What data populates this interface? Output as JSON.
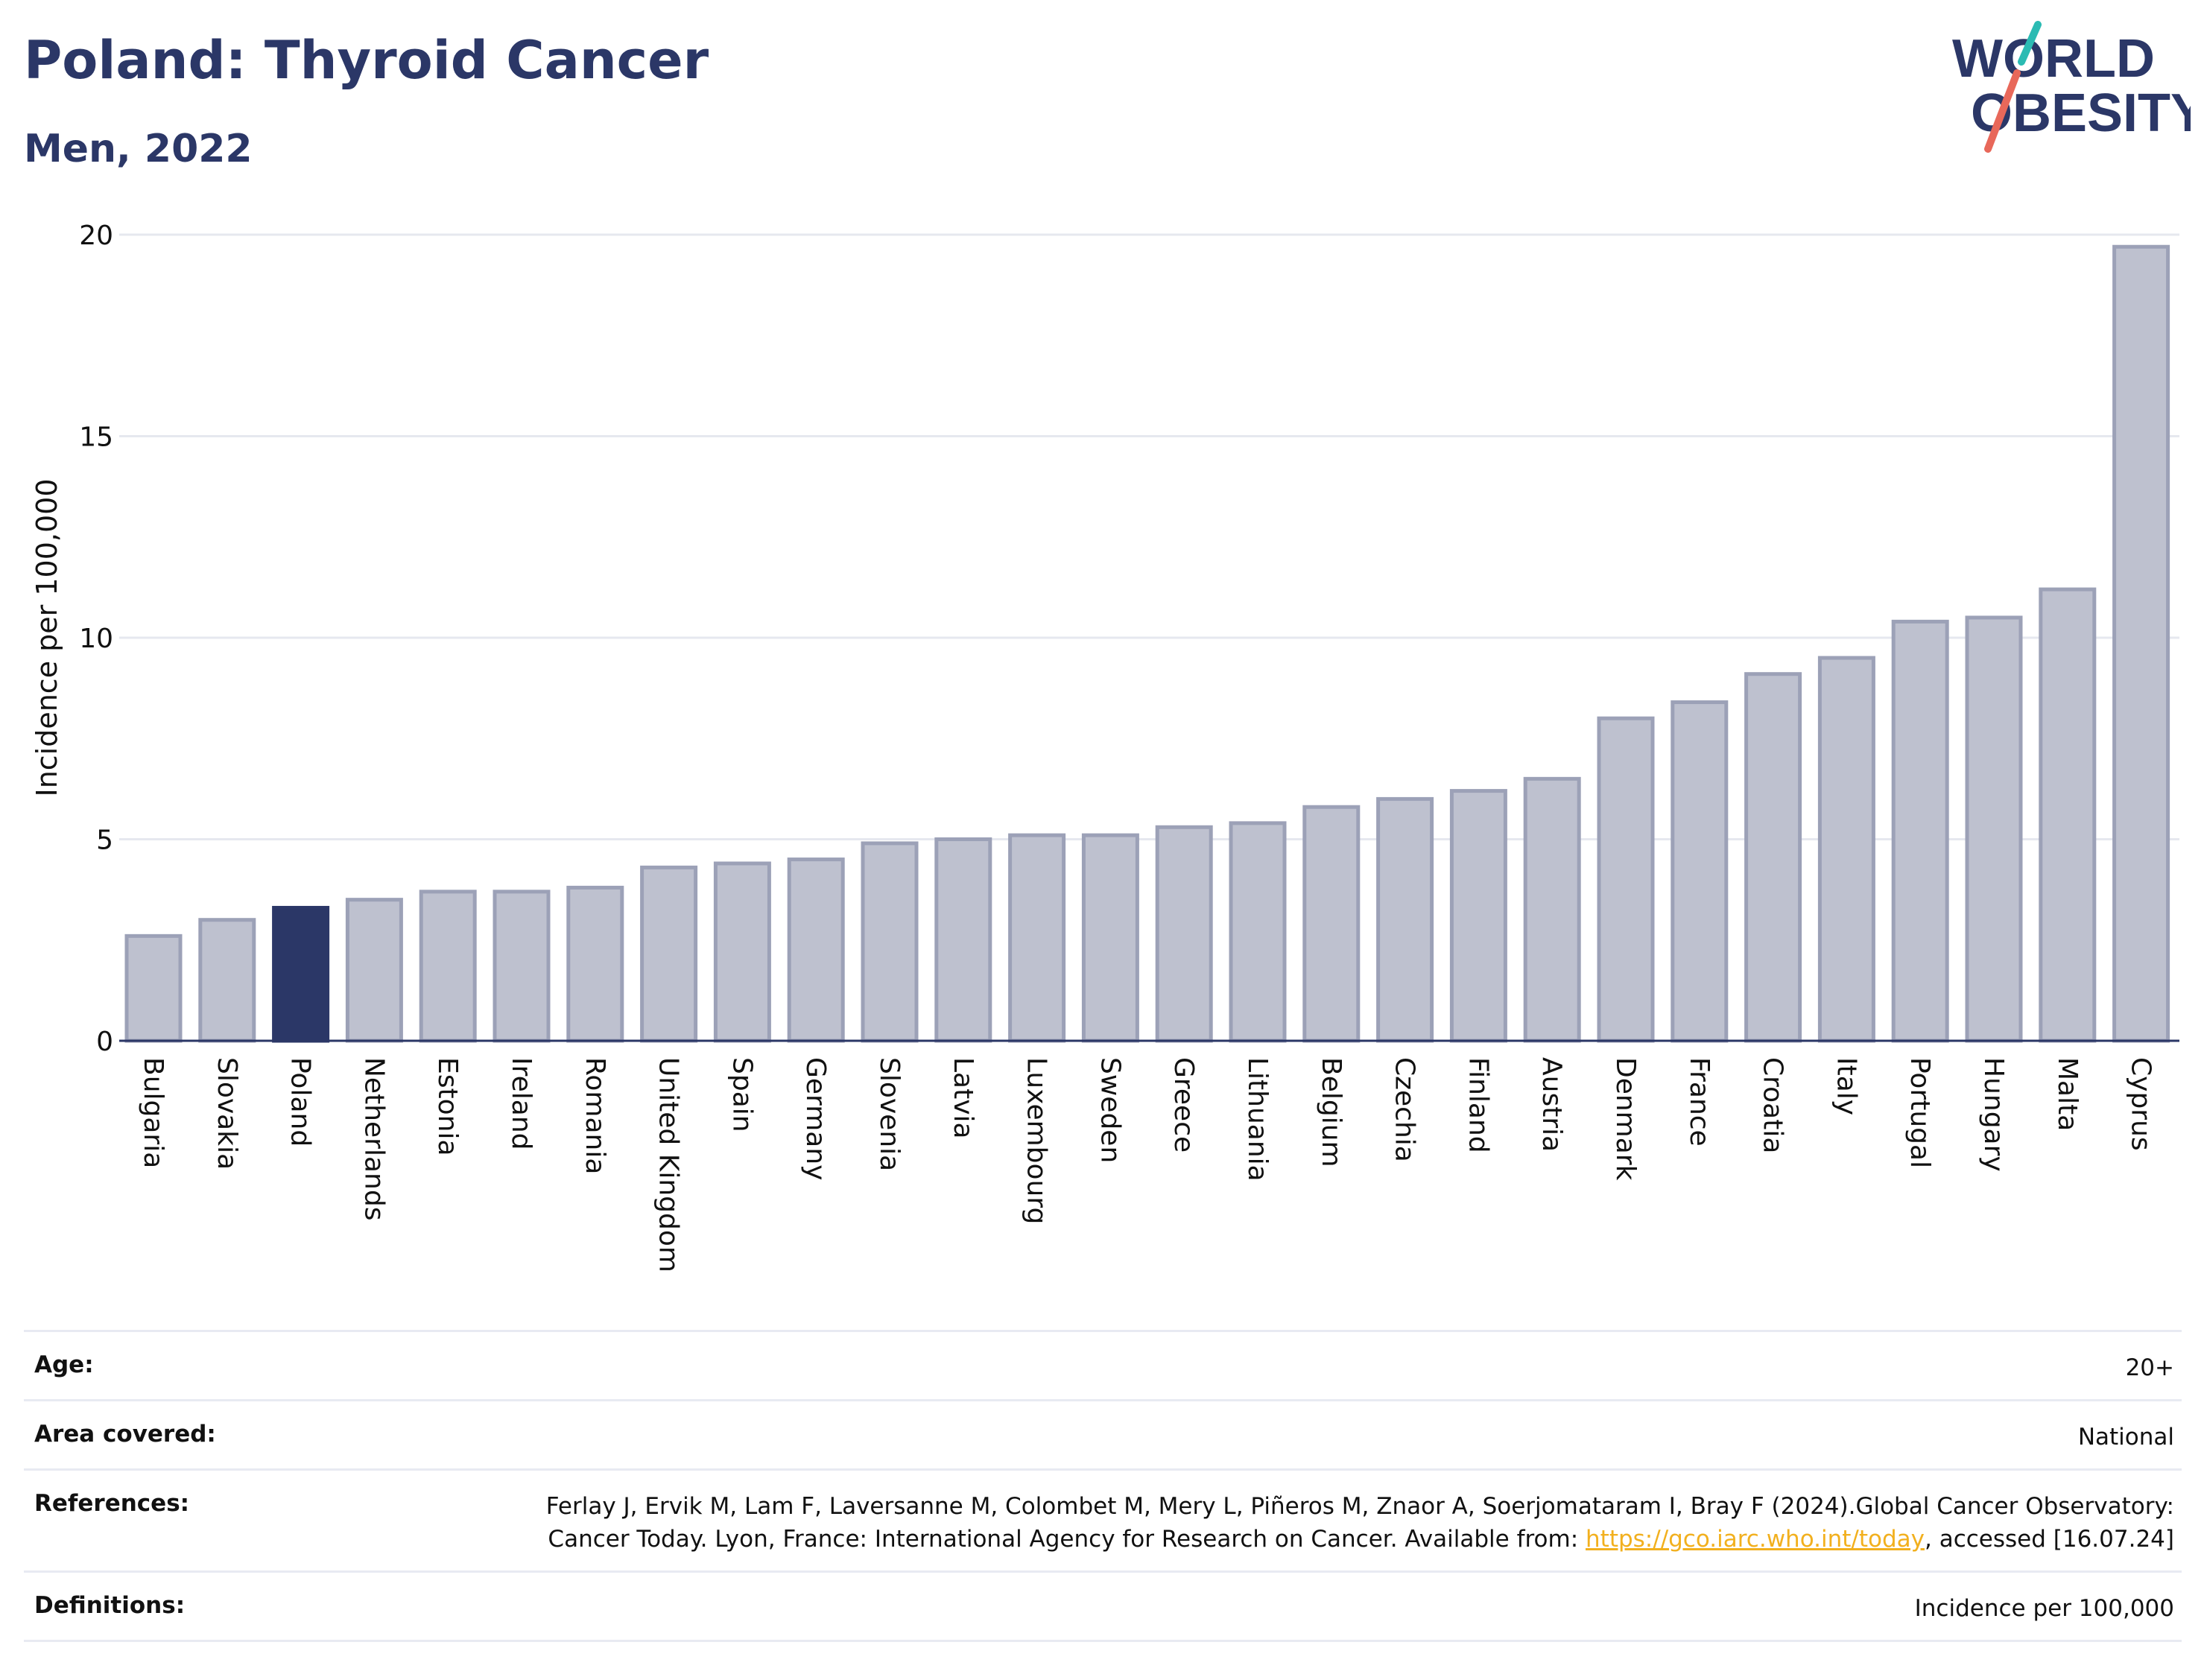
{
  "header": {
    "title": "Poland: Thyroid Cancer",
    "subtitle": "Men, 2022",
    "logo_line1": "WORLD",
    "logo_line2": "OBESITY"
  },
  "colors": {
    "title": "#2b3767",
    "bar": "#bec1cf",
    "bar_border": "#9ca1b7",
    "highlight": "#2b3767",
    "grid": "#e6e8ef",
    "logo_teal": "#2bbbb3",
    "logo_red": "#e8685a",
    "link": "#f2b01e"
  },
  "chart_data": {
    "type": "bar",
    "ylabel": "Incidence per 100,000",
    "ylim": [
      0,
      20
    ],
    "yticks": [
      "0",
      "5",
      "10",
      "15",
      "20"
    ],
    "highlight": "Poland",
    "grid": true,
    "categories": [
      "Bulgaria",
      "Slovakia",
      "Poland",
      "Netherlands",
      "Estonia",
      "Ireland",
      "Romania",
      "United Kingdom",
      "Spain",
      "Germany",
      "Slovenia",
      "Latvia",
      "Luxembourg",
      "Sweden",
      "Greece",
      "Lithuania",
      "Belgium",
      "Czechia",
      "Finland",
      "Austria",
      "Denmark",
      "France",
      "Croatia",
      "Italy",
      "Portugal",
      "Hungary",
      "Malta",
      "Cyprus"
    ],
    "values": [
      2.6,
      3.0,
      3.3,
      3.5,
      3.7,
      3.7,
      3.8,
      4.3,
      4.4,
      4.5,
      4.9,
      5.0,
      5.1,
      5.1,
      5.3,
      5.4,
      5.8,
      6.0,
      6.2,
      6.5,
      8.0,
      8.4,
      9.1,
      9.5,
      10.4,
      10.5,
      11.2,
      19.7
    ]
  },
  "info": {
    "age_label": "Age:",
    "age_value": "20+",
    "area_label": "Area covered:",
    "area_value": "National",
    "references_label": "References:",
    "references_text_1": "Ferlay J, Ervik M, Lam F, Laversanne M, Colombet M, Mery L, Piñeros M, Znaor A, Soerjomataram I, Bray F (2024).Global Cancer Observatory: Cancer Today. Lyon, France: International Agency for Research on Cancer. Available from: ",
    "references_link": "https://gco.iarc.who.int/today",
    "references_text_2": ", accessed [16.07.24]",
    "definitions_label": "Definitions:",
    "definitions_value": "Incidence per 100,000"
  }
}
